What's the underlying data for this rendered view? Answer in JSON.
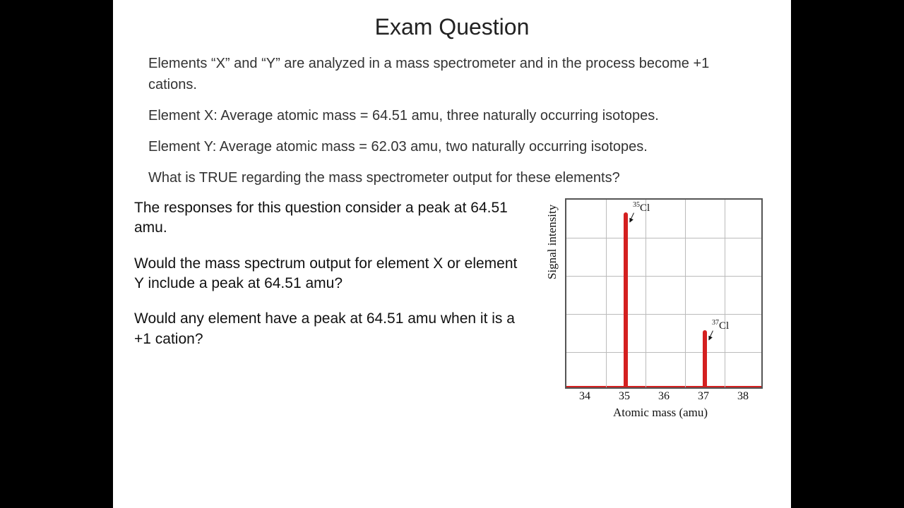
{
  "title": "Exam Question",
  "para1": "Elements “X” and “Y” are analyzed in a mass spectrometer and in the process become +1 cations.",
  "para2": "Element X: Average atomic mass = 64.51 amu, three naturally occurring isotopes.",
  "para3": "Element Y: Average atomic mass = 62.03 amu, two naturally occurring isotopes.",
  "para4": "What is TRUE regarding the mass spectrometer output for these elements?",
  "sub1": "The responses for this question consider a peak at 64.51 amu.",
  "sub2": "Would the mass spectrum output for element X or element Y include a peak at 64.51 amu?",
  "sub3": "Would any element have a peak at 64.51 amu when it is a +1 cation?",
  "chart": {
    "type": "mass-spectrum",
    "ylabel": "Signal intensity",
    "xlabel": "Atomic mass (amu)",
    "xmin": 33.5,
    "xmax": 38.5,
    "xticks": [
      34,
      35,
      36,
      37,
      38
    ],
    "grid_rows": 5,
    "grid_cols": 5,
    "border_color": "#555555",
    "grid_color": "#bbbbbb",
    "peak_color": "#d42020",
    "background_color": "#ffffff",
    "peaks": [
      {
        "x": 35,
        "height_pct": 92,
        "label_html": "<sup>35</sup>Cl"
      },
      {
        "x": 37,
        "height_pct": 30,
        "label_html": "<sup>37</sup>Cl"
      }
    ]
  }
}
